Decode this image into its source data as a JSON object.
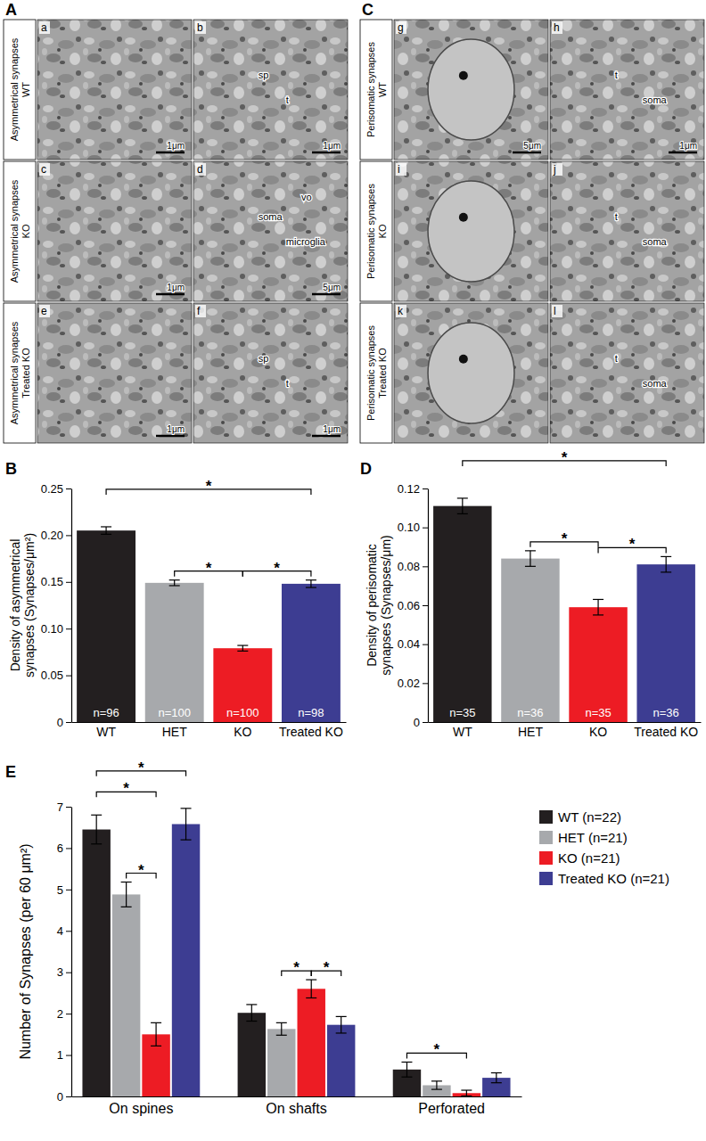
{
  "panels": [
    {
      "panel_label": "A",
      "rows": [
        {
          "label": [
            "Asymmetrical synapses",
            "WT"
          ],
          "images": [
            {
              "letter": "a",
              "scale_bar": "1μm"
            },
            {
              "letter": "b",
              "scale_bar": "1μm",
              "annotations": [
                "sp",
                "t"
              ]
            }
          ]
        },
        {
          "label": [
            "Asymmetrical synapses",
            "KO"
          ],
          "images": [
            {
              "letter": "c",
              "scale_bar": "1μm"
            },
            {
              "letter": "d",
              "scale_bar": "5μm",
              "annotations": [
                "soma",
                "microglia",
                "vo"
              ]
            }
          ]
        },
        {
          "label": [
            "Asymmetrical synapses",
            "Treated KO"
          ],
          "images": [
            {
              "letter": "e",
              "scale_bar": "1μm"
            },
            {
              "letter": "f",
              "scale_bar": "1μm",
              "annotations": [
                "sp",
                "t"
              ]
            }
          ]
        }
      ]
    },
    {
      "panel_label": "C",
      "rows": [
        {
          "label": [
            "Perisomatic synapses",
            "WT"
          ],
          "images": [
            {
              "letter": "g",
              "scale_bar": "5μm"
            },
            {
              "letter": "h",
              "scale_bar": "1μm",
              "annotations": [
                "t",
                "soma"
              ]
            }
          ]
        },
        {
          "label": [
            "Perisomatic synapses",
            "KO"
          ],
          "images": [
            {
              "letter": "i"
            },
            {
              "letter": "j",
              "annotations": [
                "t",
                "soma"
              ]
            }
          ]
        },
        {
          "label": [
            "Perisomatic synapses",
            "Treated KO"
          ],
          "images": [
            {
              "letter": "k"
            },
            {
              "letter": "l",
              "annotations": [
                "t",
                "soma"
              ]
            }
          ]
        }
      ]
    }
  ],
  "chart_data": [
    {
      "panel_label": "B",
      "type": "bar",
      "categories": [
        "WT",
        "HET",
        "KO",
        "Treated KO"
      ],
      "values": [
        0.205,
        0.149,
        0.079,
        0.148
      ],
      "errors": [
        0.004,
        0.003,
        0.003,
        0.004
      ],
      "colors": [
        "#231f20",
        "#a7a9ac",
        "#ed1c24",
        "#3d3d92"
      ],
      "bar_labels": [
        "n=96",
        "n=100",
        "n=100",
        "n=98"
      ],
      "y_label": "Density of asymmetrical synapses (Synapses/μm²)",
      "ylim": [
        0,
        0.25
      ],
      "yticks": [
        0,
        0.05,
        {
          "value": 0.1,
          "label": "0.10"
        },
        0.15,
        {
          "value": 0.2,
          "label": "0.20"
        },
        0.25
      ],
      "significance": [
        {
          "between": [
            0,
            3
          ],
          "label": "*"
        },
        {
          "between": [
            1,
            2
          ],
          "label": "*"
        },
        {
          "between": [
            2,
            3
          ],
          "label": "*"
        }
      ]
    },
    {
      "panel_label": "D",
      "type": "bar",
      "categories": [
        "WT",
        "HET",
        "KO",
        "Treated KO"
      ],
      "values": [
        0.111,
        0.084,
        0.059,
        0.081
      ],
      "errors": [
        0.004,
        0.004,
        0.004,
        0.004
      ],
      "colors": [
        "#231f20",
        "#a7a9ac",
        "#ed1c24",
        "#3d3d92"
      ],
      "bar_labels": [
        "n=35",
        "n=36",
        "n=35",
        "n=36"
      ],
      "y_label": "Density of perisomatic synapses (Synapses/μm)",
      "ylim": [
        0,
        0.12
      ],
      "yticks": [
        0,
        0.02,
        0.04,
        0.06,
        0.08,
        {
          "value": 0.1,
          "label": "0.10"
        },
        0.12
      ],
      "significance": [
        {
          "between": [
            0,
            3
          ],
          "label": "*"
        },
        {
          "between": [
            1,
            2
          ],
          "label": "*"
        },
        {
          "between": [
            2,
            3
          ],
          "label": "*"
        }
      ]
    },
    {
      "panel_label": "E",
      "type": "bar",
      "categories": [
        "On spines",
        "On shafts",
        "Perforated"
      ],
      "series": [
        {
          "name": "WT (n=22)",
          "color": "#231f20",
          "values": [
            6.45,
            2.02,
            0.65
          ],
          "errors": [
            0.35,
            0.2,
            0.18
          ]
        },
        {
          "name": "HET (n=21)",
          "color": "#a7a9ac",
          "values": [
            4.88,
            1.63,
            0.27
          ],
          "errors": [
            0.3,
            0.15,
            0.1
          ]
        },
        {
          "name": "KO (n=21)",
          "color": "#ed1c24",
          "values": [
            1.5,
            2.6,
            0.08
          ],
          "errors": [
            0.28,
            0.22,
            0.07
          ]
        },
        {
          "name": "Treated KO (n=21)",
          "color": "#3d3d92",
          "values": [
            6.58,
            1.73,
            0.45
          ],
          "errors": [
            0.38,
            0.2,
            0.12
          ]
        }
      ],
      "y_label": "Number of Synapses (per 60 μm²)",
      "ylim": [
        0,
        7
      ],
      "yticks": [
        0,
        1,
        2,
        3,
        4,
        5,
        6,
        7
      ],
      "legend": "top-right",
      "significance": [
        {
          "category": 0,
          "between": [
            0,
            3
          ],
          "label": "*"
        },
        {
          "category": 0,
          "between": [
            0,
            2
          ],
          "label": "*"
        },
        {
          "category": 0,
          "between": [
            1,
            2
          ],
          "label": "*"
        },
        {
          "category": 1,
          "between": [
            1,
            2
          ],
          "label": "*"
        },
        {
          "category": 1,
          "between": [
            2,
            3
          ],
          "label": "*"
        },
        {
          "category": 2,
          "between": [
            0,
            2
          ],
          "label": "*"
        }
      ]
    }
  ]
}
